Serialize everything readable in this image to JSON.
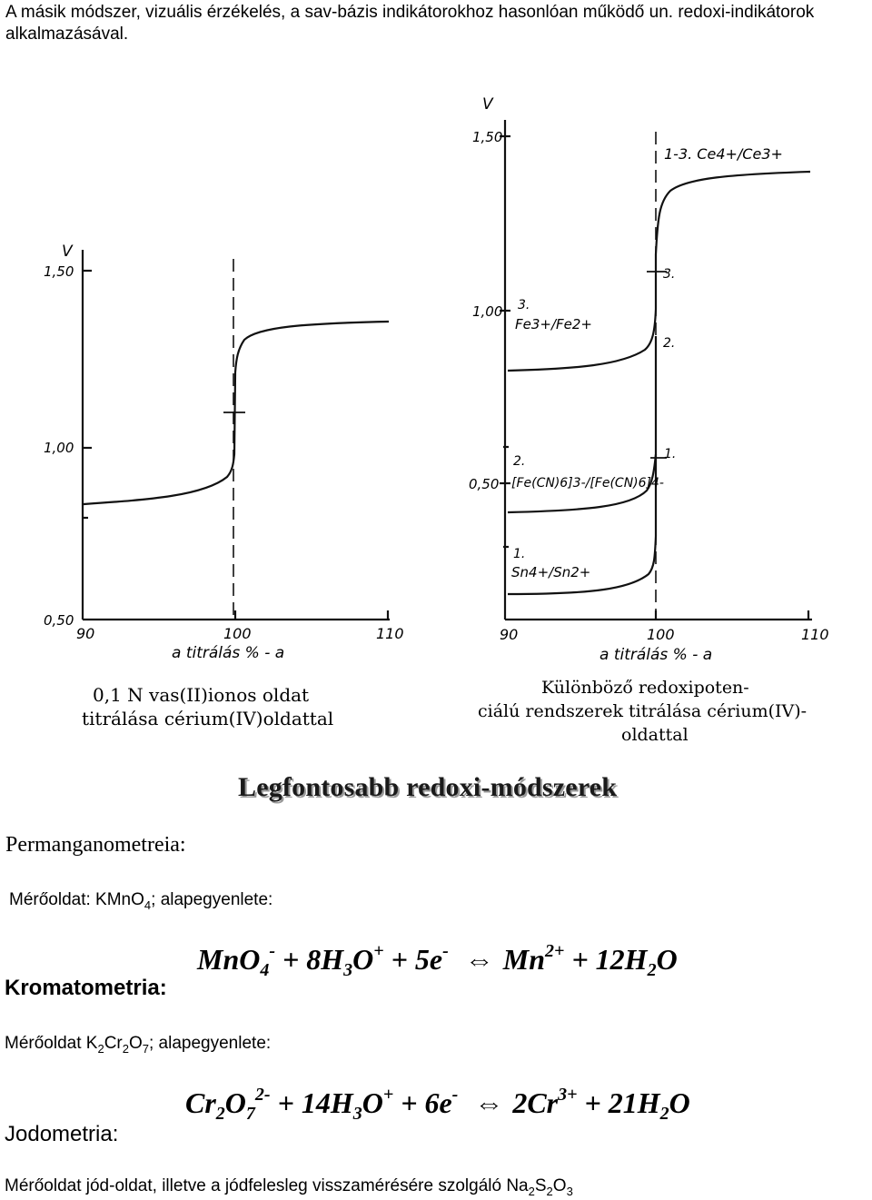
{
  "intro": "A másik módszer, vizuális érzékelés, a sav-bázis indikátorokhoz hasonlóan működő un. redoxi-indikátorok alkalmazásával.",
  "figure_left": {
    "axis_y_label": "V",
    "y_ticks": [
      "1,50",
      "1,00",
      "0,50"
    ],
    "x_ticks": [
      "90",
      "100",
      "110"
    ],
    "x_axis_label": "a titrálás % - a",
    "caption_line1": "0,1 N vas(II)ionos oldat",
    "caption_line2": "titrálása cérium(IV)oldattal"
  },
  "figure_right": {
    "axis_y_label": "V",
    "y_ticks": [
      "1,50",
      "1,00",
      "0,50"
    ],
    "x_ticks": [
      "90",
      "100",
      "110"
    ],
    "x_axis_label": "a titrálás % - a",
    "curve_top_label": "1-3. Ce4+/Ce3+",
    "curve3_num": "3.",
    "curve3_label": "Fe3+/Fe2+",
    "curve2_num": "2.",
    "curve2_label": "[Fe(CN)6]3-/[Fe(CN)6]4-",
    "curve1_num": "1.",
    "curve1_label": "Sn4+/Sn2+",
    "mark3": "3.",
    "mark2": "2.",
    "mark1": "1.",
    "caption_line1": "Különböző redoxipoten-",
    "caption_line2": "ciálú rendszerek titrálása cérium(IV)-",
    "caption_line3": "oldattal"
  },
  "heading": "Legfontosabb redoxi-módszerek",
  "permanganometry": {
    "title": "Permanganometreia:",
    "measuring_prefix": "Mérőoldat: KMnO",
    "measuring_sub": "4",
    "measuring_suffix": "; alapegyenlete:"
  },
  "equation1": {
    "t1": "MnO",
    "s1": "4",
    "p1": "-",
    "t2": " + 8H",
    "s2": "3",
    "t3": "O",
    "p3": "+",
    "t4": " + 5e",
    "p4": "-",
    "arrow": "⇔",
    "t5": "Mn",
    "p5": "2+",
    "t6": " + 12H",
    "s6": "2",
    "t7": "O"
  },
  "chromatometry": {
    "title": "Kromatometria:",
    "m1": "Mérőoldat K",
    "s1": "2",
    "m2": "Cr",
    "s2": "2",
    "m3": "O",
    "s3": "7",
    "m4": "; alapegyenlete:"
  },
  "equation2": {
    "t1": "Cr",
    "s1": "2",
    "t2": "O",
    "s2": "7",
    "p2": "2-",
    "t3": " + 14H",
    "s3": "3",
    "t4": "O",
    "p4": "+",
    "t5": " + 6e",
    "p5": "-",
    "arrow": "⇔",
    "t6": "2Cr",
    "p6": "3+",
    "t7": " + 21H",
    "s7": "2",
    "t8": "O"
  },
  "iodometry": {
    "title": "Jodometria:",
    "m1": "Mérőoldat jód-oldat, illetve a jódfelesleg visszamérésére szolgáló Na",
    "s1": "2",
    "m2": "S",
    "s2": "2",
    "m3": "O",
    "s3": "3"
  }
}
